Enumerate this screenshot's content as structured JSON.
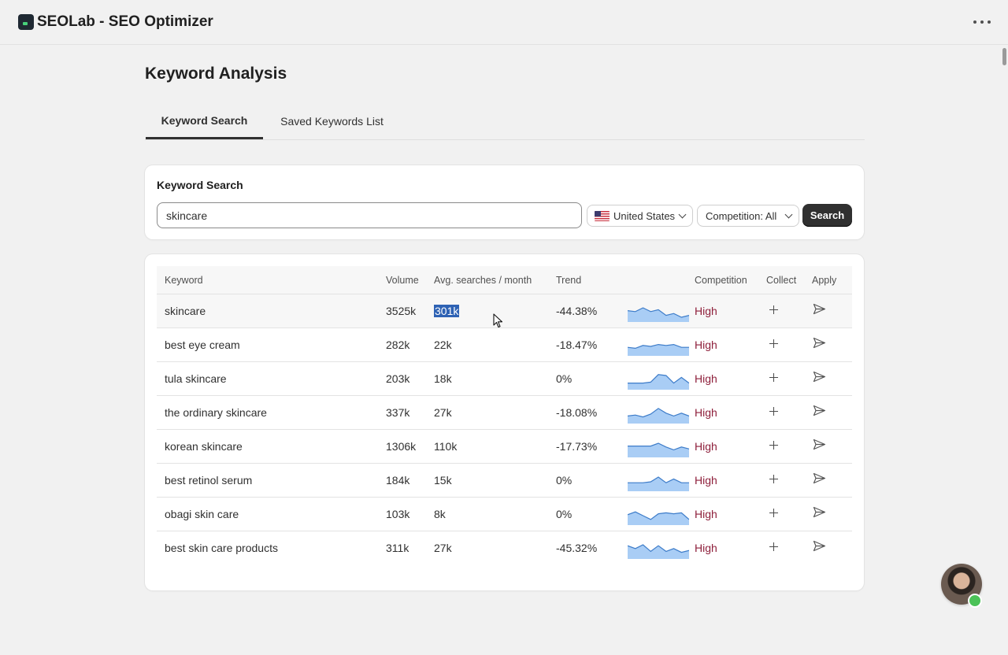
{
  "app": {
    "title": "SEOLab - SEO Optimizer"
  },
  "page": {
    "title": "Keyword Analysis"
  },
  "tabs": [
    {
      "label": "Keyword Search",
      "active": true
    },
    {
      "label": "Saved Keywords List",
      "active": false
    }
  ],
  "search": {
    "card_title": "Keyword Search",
    "query": "skincare",
    "country": "United States",
    "competition": "Competition: All",
    "button_label": "Search"
  },
  "table": {
    "headers": {
      "keyword": "Keyword",
      "volume": "Volume",
      "avg": "Avg. searches / month",
      "trend": "Trend",
      "competition": "Competition",
      "collect": "Collect",
      "apply": "Apply"
    },
    "rows": [
      {
        "keyword": "skincare",
        "volume": "3525k",
        "avg": "301k",
        "trend": "-44.38%",
        "competition": "High",
        "spark": [
          0.6,
          0.55,
          0.75,
          0.55,
          0.65,
          0.35,
          0.45,
          0.25,
          0.35
        ]
      },
      {
        "keyword": "best eye cream",
        "volume": "282k",
        "avg": "22k",
        "trend": "-18.47%",
        "competition": "High",
        "spark": [
          0.45,
          0.4,
          0.55,
          0.5,
          0.6,
          0.55,
          0.6,
          0.45,
          0.45
        ]
      },
      {
        "keyword": "tula skincare",
        "volume": "203k",
        "avg": "18k",
        "trend": "0%",
        "competition": "High",
        "spark": [
          0.35,
          0.35,
          0.35,
          0.4,
          0.8,
          0.75,
          0.35,
          0.65,
          0.35
        ]
      },
      {
        "keyword": "the ordinary skincare",
        "volume": "337k",
        "avg": "27k",
        "trend": "-18.08%",
        "competition": "High",
        "spark": [
          0.4,
          0.45,
          0.35,
          0.5,
          0.8,
          0.55,
          0.4,
          0.55,
          0.4
        ]
      },
      {
        "keyword": "korean skincare",
        "volume": "1306k",
        "avg": "110k",
        "trend": "-17.73%",
        "competition": "High",
        "spark": [
          0.6,
          0.6,
          0.6,
          0.6,
          0.75,
          0.55,
          0.4,
          0.55,
          0.45
        ]
      },
      {
        "keyword": "best retinol serum",
        "volume": "184k",
        "avg": "15k",
        "trend": "0%",
        "competition": "High",
        "spark": [
          0.45,
          0.45,
          0.45,
          0.5,
          0.75,
          0.45,
          0.65,
          0.45,
          0.45
        ]
      },
      {
        "keyword": "obagi skin care",
        "volume": "103k",
        "avg": "8k",
        "trend": "0%",
        "competition": "High",
        "spark": [
          0.55,
          0.7,
          0.5,
          0.3,
          0.6,
          0.65,
          0.6,
          0.65,
          0.3
        ]
      },
      {
        "keyword": "best skin care products",
        "volume": "311k",
        "avg": "27k",
        "trend": "-45.32%",
        "competition": "High",
        "spark": [
          0.7,
          0.55,
          0.75,
          0.4,
          0.7,
          0.4,
          0.55,
          0.35,
          0.45
        ]
      }
    ]
  },
  "colors": {
    "competition_high": "#8e1f3b",
    "spark_line": "#3d7cc9",
    "spark_fill": "#a9cdf5",
    "primary_button": "#303030",
    "selection": "#2e62b4"
  }
}
